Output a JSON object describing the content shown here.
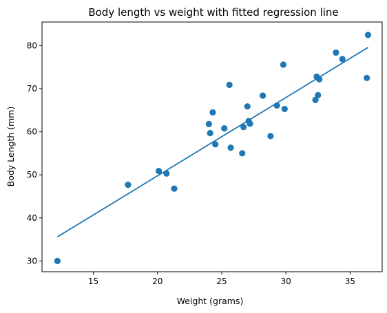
{
  "chart_data": {
    "type": "scatter",
    "title": "Body length vs weight with fitted regression line",
    "xlabel": "Weight (grams)",
    "ylabel": "Body Length (mm)",
    "xlim": [
      11.0,
      37.5
    ],
    "ylim": [
      27.5,
      85.5
    ],
    "xticks": [
      15,
      20,
      25,
      30,
      35
    ],
    "yticks": [
      30,
      40,
      50,
      60,
      70,
      80
    ],
    "grid": false,
    "legend": "none",
    "color": "#1f77b4",
    "series": [
      {
        "kind": "scatter",
        "points": [
          [
            12.2,
            30.0
          ],
          [
            17.7,
            47.7
          ],
          [
            20.1,
            50.9
          ],
          [
            20.7,
            50.3
          ],
          [
            21.3,
            46.8
          ],
          [
            24.0,
            61.8
          ],
          [
            24.1,
            59.7
          ],
          [
            24.3,
            64.5
          ],
          [
            24.5,
            57.1
          ],
          [
            25.2,
            60.8
          ],
          [
            25.6,
            70.9
          ],
          [
            25.7,
            56.3
          ],
          [
            26.6,
            55.0
          ],
          [
            26.7,
            61.1
          ],
          [
            27.0,
            65.9
          ],
          [
            27.1,
            62.5
          ],
          [
            27.2,
            61.9
          ],
          [
            28.2,
            68.4
          ],
          [
            28.8,
            59.0
          ],
          [
            29.3,
            66.1
          ],
          [
            29.8,
            75.6
          ],
          [
            29.9,
            65.3
          ],
          [
            32.3,
            67.4
          ],
          [
            32.4,
            72.8
          ],
          [
            32.5,
            68.5
          ],
          [
            32.6,
            72.2
          ],
          [
            33.9,
            78.4
          ],
          [
            34.4,
            76.9
          ],
          [
            36.3,
            72.5
          ],
          [
            36.4,
            82.5
          ]
        ]
      },
      {
        "kind": "line",
        "points": [
          [
            12.2,
            35.6
          ],
          [
            36.4,
            79.6
          ]
        ]
      }
    ]
  }
}
